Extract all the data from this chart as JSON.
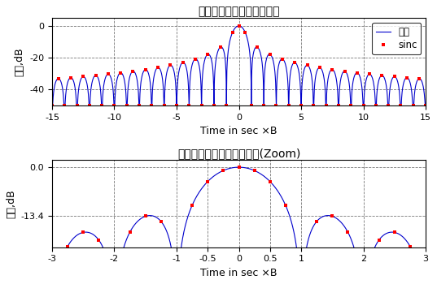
{
  "title1": "匹配滤波后的线性调频信号",
  "title2": "匹配滤波后的线性调频信号(Zoom)",
  "xlabel": "Time in sec ×B",
  "ylabel": "幅度,dB",
  "plot1_xlim": [
    -15,
    15
  ],
  "plot1_ylim": [
    -50,
    5
  ],
  "plot1_yticks": [
    0,
    -20,
    -40
  ],
  "plot1_xticks": [
    -15,
    -10,
    -5,
    0,
    5,
    10,
    15
  ],
  "plot2_xlim": [
    -3,
    3
  ],
  "plot2_ylim": [
    -22,
    2
  ],
  "plot2_yticks": [
    0,
    -13.4
  ],
  "plot2_xticks": [
    -3,
    -2,
    -1,
    -0.5,
    0,
    0.5,
    1,
    2,
    3
  ],
  "line_color": "#0000cc",
  "dot_color": "#ff0000",
  "grid_color": "#555555",
  "bg_color": "#ffffff",
  "legend_label_sim": "仿真",
  "legend_label_sinc": "sinc",
  "sinc_dot_step1": 0.5,
  "sinc_dot_step2": 0.25,
  "line_width": 0.8,
  "dot_size": 3.5,
  "title_fontsize": 10,
  "tick_fontsize": 8,
  "label_fontsize": 9
}
